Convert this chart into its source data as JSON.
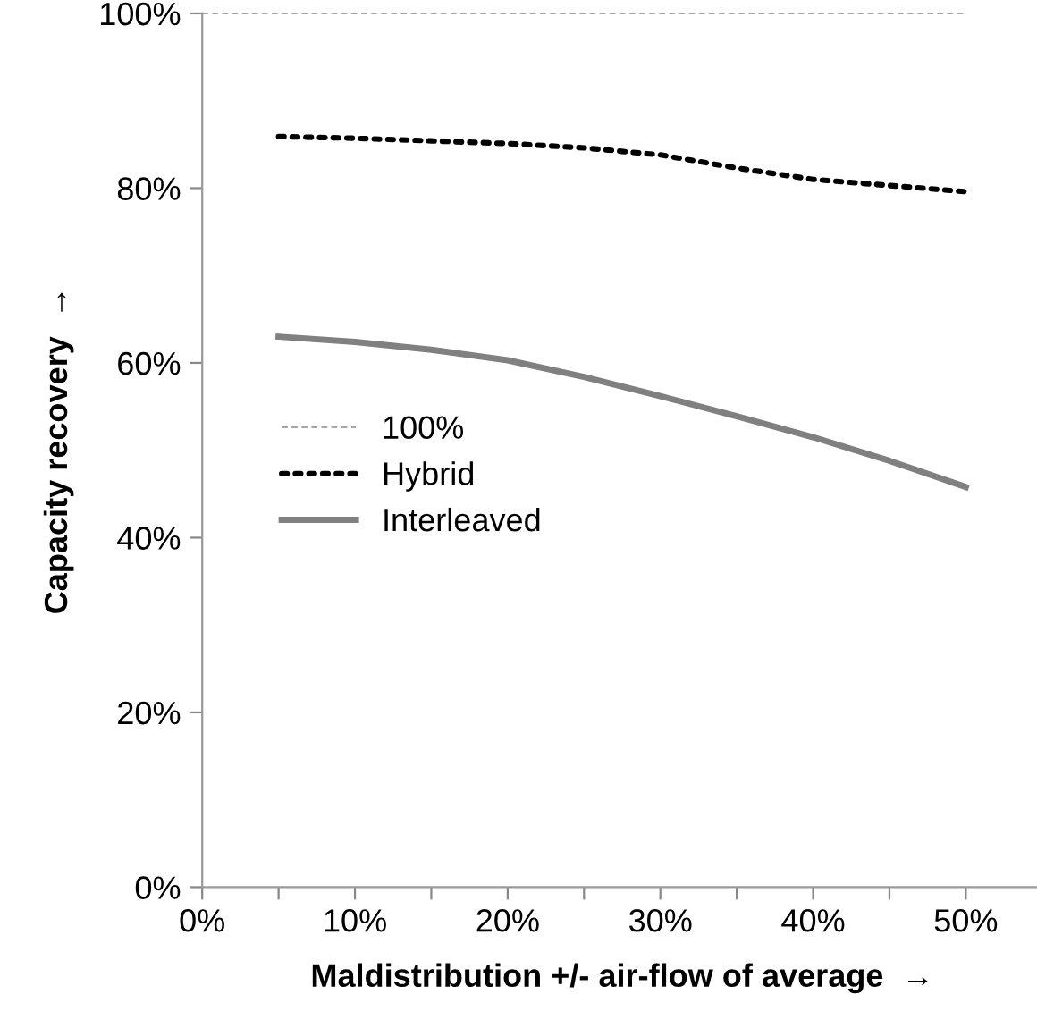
{
  "chart_data": {
    "type": "line",
    "xlabel": "Maldistribution +/- air-flow of average  →",
    "ylabel": "Capacity recovery  →",
    "xlim": [
      0,
      55
    ],
    "ylim": [
      0,
      100
    ],
    "xticks": [
      {
        "value": 0,
        "label": "0%"
      },
      {
        "value": 5,
        "label": null
      },
      {
        "value": 10,
        "label": "10%"
      },
      {
        "value": 15,
        "label": null
      },
      {
        "value": 20,
        "label": "20%"
      },
      {
        "value": 25,
        "label": null
      },
      {
        "value": 30,
        "label": "30%"
      },
      {
        "value": 35,
        "label": null
      },
      {
        "value": 40,
        "label": "40%"
      },
      {
        "value": 45,
        "label": null
      },
      {
        "value": 50,
        "label": "50%"
      }
    ],
    "yticks": [
      {
        "value": 0,
        "label": "0%"
      },
      {
        "value": 20,
        "label": "20%"
      },
      {
        "value": 40,
        "label": "40%"
      },
      {
        "value": 60,
        "label": "60%"
      },
      {
        "value": 80,
        "label": "80%"
      },
      {
        "value": 100,
        "label": "100%"
      }
    ],
    "grid": false,
    "legend": "center left",
    "marker": "none",
    "series": [
      {
        "name": "100%",
        "color": "#a6a6a6",
        "line_style": "dashed",
        "x": [
          0,
          50
        ],
        "values": [
          100,
          100
        ]
      },
      {
        "name": "Hybrid",
        "color": "#000000",
        "line_style": "dotted",
        "x": [
          5,
          10,
          15,
          20,
          25,
          30,
          35,
          40,
          45,
          50
        ],
        "values": [
          85.9,
          85.7,
          85.4,
          85.1,
          84.6,
          83.8,
          82.3,
          81.0,
          80.3,
          79.6
        ]
      },
      {
        "name": "Interleaved",
        "color": "#808080",
        "line_style": "solid",
        "x": [
          5,
          10,
          15,
          20,
          25,
          30,
          35,
          40,
          45,
          50
        ],
        "values": [
          63.0,
          62.4,
          61.5,
          60.3,
          58.4,
          56.2,
          53.9,
          51.5,
          48.8,
          45.8
        ]
      }
    ]
  }
}
